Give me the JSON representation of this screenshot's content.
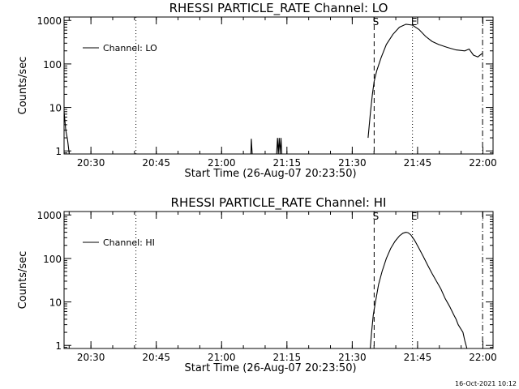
{
  "footer": {
    "timestamp": "16-Oct-2021 10:12"
  },
  "chart_data": [
    {
      "type": "line",
      "title": "RHESSI PARTICLE_RATE Channel: LO",
      "xlabel": "Start Time (26-Aug-07 20:23:50)",
      "ylabel": "Counts/sec",
      "x_unit": "minutes since 20:23:50",
      "xlim": [
        0,
        98.5
      ],
      "ylim": [
        0.85,
        1200
      ],
      "y_scale": "log",
      "x_ticks": [
        {
          "x": 6.17,
          "label": "20:30"
        },
        {
          "x": 21.17,
          "label": "20:45"
        },
        {
          "x": 36.17,
          "label": "21:00"
        },
        {
          "x": 51.17,
          "label": "21:15"
        },
        {
          "x": 66.17,
          "label": "21:30"
        },
        {
          "x": 81.17,
          "label": "21:45"
        },
        {
          "x": 96.17,
          "label": "22:00"
        }
      ],
      "y_ticks": [
        {
          "y": 1,
          "label": "1"
        },
        {
          "y": 10,
          "label": "10"
        },
        {
          "y": 100,
          "label": "100"
        },
        {
          "y": 1000,
          "label": "1000"
        }
      ],
      "legend": {
        "label": "Channel: LO",
        "position": "top-left"
      },
      "markers": [
        {
          "x": 16.5,
          "style": "dotted",
          "label": ""
        },
        {
          "x": 71.2,
          "style": "dashed",
          "label": "S"
        },
        {
          "x": 80.0,
          "style": "dotted",
          "label": "E"
        },
        {
          "x": 96.1,
          "style": "dashdot",
          "label": ""
        }
      ],
      "series": [
        {
          "segments": [
            {
              "x": [
                0.0,
                0.4,
                0.8,
                1.2
              ],
              "y": [
                8,
                3,
                1.8,
                0.85
              ]
            },
            {
              "x": [
                42.9,
                43.0,
                43.1,
                43.2
              ],
              "y": [
                0.85,
                1.9,
                1.2,
                0.85
              ]
            },
            {
              "x": [
                48.8,
                49.0,
                49.2,
                49.4,
                49.6,
                49.8,
                50.0
              ],
              "y": [
                0.85,
                2.0,
                0.85,
                2.0,
                0.85,
                2.0,
                0.85
              ]
            },
            {
              "x": [
                69.8,
                70.3,
                70.8,
                71.2,
                71.8,
                72.8,
                74.0,
                75.5,
                77.0,
                78.5,
                80.0,
                81.5,
                83.0,
                84.5,
                86.0,
                88.0,
                90.0,
                92.0,
                93.0,
                94.0,
                95.0,
                96.0
              ],
              "y": [
                2,
                7,
                20,
                40,
                70,
                140,
                280,
                480,
                700,
                820,
                780,
                620,
                430,
                330,
                280,
                240,
                210,
                200,
                220,
                160,
                145,
                175
              ]
            }
          ]
        }
      ]
    },
    {
      "type": "line",
      "title": "RHESSI PARTICLE_RATE Channel: HI",
      "xlabel": "Start Time (26-Aug-07 20:23:50)",
      "ylabel": "Counts/sec",
      "x_unit": "minutes since 20:23:50",
      "xlim": [
        0,
        98.5
      ],
      "ylim": [
        0.85,
        1200
      ],
      "y_scale": "log",
      "x_ticks": [
        {
          "x": 6.17,
          "label": "20:30"
        },
        {
          "x": 21.17,
          "label": "20:45"
        },
        {
          "x": 36.17,
          "label": "21:00"
        },
        {
          "x": 51.17,
          "label": "21:15"
        },
        {
          "x": 66.17,
          "label": "21:30"
        },
        {
          "x": 81.17,
          "label": "21:45"
        },
        {
          "x": 96.17,
          "label": "22:00"
        }
      ],
      "y_ticks": [
        {
          "y": 1,
          "label": "1"
        },
        {
          "y": 10,
          "label": "10"
        },
        {
          "y": 100,
          "label": "100"
        },
        {
          "y": 1000,
          "label": "1000"
        }
      ],
      "legend": {
        "label": "Channel: HI",
        "position": "top-left"
      },
      "markers": [
        {
          "x": 16.5,
          "style": "dotted",
          "label": ""
        },
        {
          "x": 71.2,
          "style": "dashed",
          "label": "S"
        },
        {
          "x": 80.0,
          "style": "dotted",
          "label": "E"
        },
        {
          "x": 96.1,
          "style": "dashdot",
          "label": ""
        }
      ],
      "series": [
        {
          "segments": [
            {
              "x": [
                70.3,
                70.6,
                71.0,
                71.5,
                72.2,
                73.0,
                74.0,
                75.0,
                76.0,
                77.0,
                77.8,
                78.5,
                79.0,
                79.6,
                80.5,
                81.5,
                82.5,
                83.5,
                84.5,
                85.5,
                86.5,
                87.5,
                88.5,
                89.5,
                90.0,
                90.5,
                91.0,
                91.6,
                92.0,
                92.5
              ],
              "y": [
                0.85,
                2,
                5,
                10,
                25,
                50,
                100,
                170,
                250,
                330,
                380,
                400,
                390,
                350,
                260,
                170,
                110,
                70,
                45,
                30,
                20,
                12,
                8,
                5,
                4,
                3,
                2.5,
                2,
                1.3,
                0.85
              ]
            }
          ]
        }
      ]
    }
  ]
}
